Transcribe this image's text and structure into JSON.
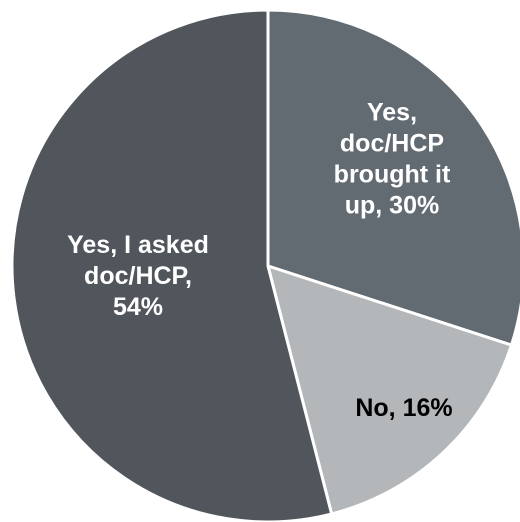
{
  "chart_data": {
    "type": "pie",
    "title": "",
    "slices": [
      {
        "name": "Yes, doc/HCP brought it up",
        "value": 30,
        "color": "#636b72",
        "label_color": "#ffffff",
        "label_lines": [
          "Yes,",
          "doc/HCP",
          "brought it",
          "up, 30%"
        ]
      },
      {
        "name": "No",
        "value": 16,
        "color": "#b4b7ba",
        "label_color": "#000000",
        "label_lines": [
          "No, 16%"
        ]
      },
      {
        "name": "Yes, I asked doc/HCP",
        "value": 54,
        "color": "#50565c",
        "label_color": "#ffffff",
        "label_lines": [
          "Yes, I asked",
          "doc/HCP,",
          "54%"
        ]
      }
    ],
    "start_angle_deg": 0,
    "direction": "clockwise",
    "slice_border_color": "#ffffff",
    "legend": "none"
  }
}
